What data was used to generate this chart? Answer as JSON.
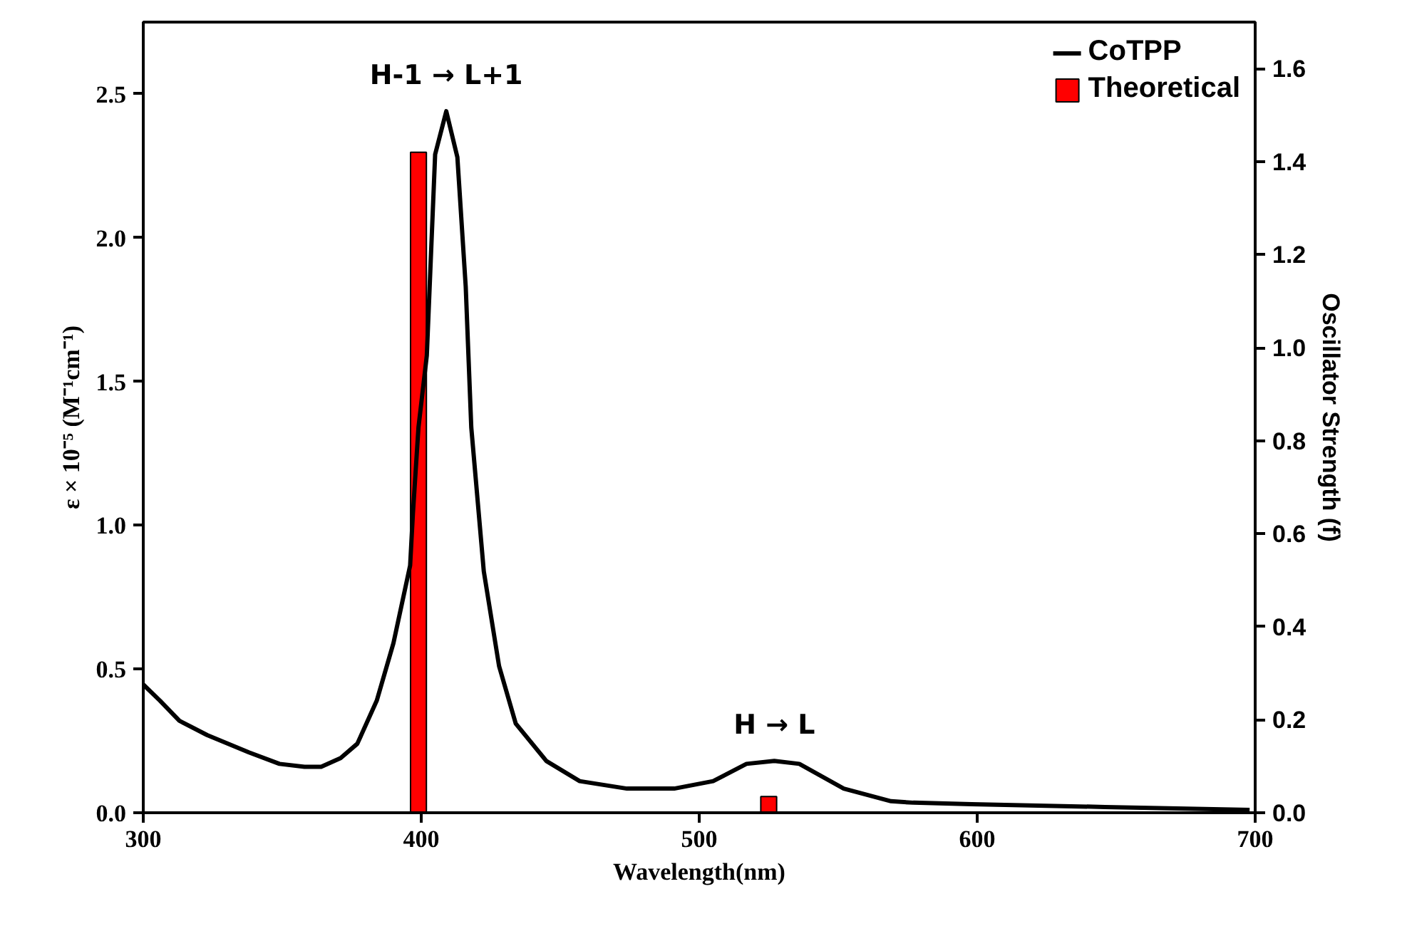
{
  "chart_data": {
    "type": "line",
    "xlabel": "Wavelength(nm)",
    "ylabel": "ε × 10⁻⁵ (M⁻¹cm⁻¹)",
    "y2label": "Oscillator Strength (f)",
    "xlim": [
      300,
      700
    ],
    "xticks": [
      300,
      400,
      500,
      600,
      700
    ],
    "ylim": [
      0,
      2.75
    ],
    "yticks": [
      {
        "value": 0,
        "label": "0.0"
      },
      0.5,
      {
        "value": 1,
        "label": "1.0"
      },
      1.5,
      {
        "value": 2,
        "label": "2.0"
      },
      2.5
    ],
    "y2lim": [
      0,
      1.7
    ],
    "y2ticks": [
      {
        "value": 0,
        "label": "0.0"
      },
      0.2,
      0.4,
      0.6,
      0.8,
      {
        "value": 1,
        "label": "1.0"
      },
      1.2,
      1.4,
      1.6
    ],
    "legend": "top right",
    "grid": false,
    "series": [
      {
        "name": "CoTPP",
        "color": "#000000",
        "x": [
          300,
          306,
          313,
          323,
          338,
          349,
          358,
          364,
          371,
          377,
          384,
          390,
          396,
          397,
          399,
          402,
          405,
          409,
          413,
          416,
          418,
          422.5,
          428,
          434,
          445,
          457,
          474,
          491,
          505,
          517,
          527,
          536,
          552,
          569,
          577,
          598,
          646,
          698
        ],
        "values": [
          0.446,
          0.39,
          0.32,
          0.27,
          0.21,
          0.17,
          0.16,
          0.16,
          0.19,
          0.24,
          0.39,
          0.59,
          0.86,
          1.04,
          1.34,
          1.59,
          2.29,
          2.44,
          2.28,
          1.83,
          1.34,
          0.84,
          0.51,
          0.31,
          0.18,
          0.11,
          0.084,
          0.084,
          0.11,
          0.17,
          0.18,
          0.17,
          0.084,
          0.04,
          0.035,
          0.03,
          0.02,
          0.01
        ]
      },
      {
        "name": "Theoretical",
        "type": "bar",
        "axis": "y2",
        "color": "#ff0000",
        "x": [
          399,
          525
        ],
        "values": [
          1.42,
          0.035
        ]
      }
    ],
    "annotations": [
      {
        "text": "H-1 → L+1",
        "x": 409,
        "y": 2.44
      },
      {
        "text": "H → L",
        "x": 527,
        "y": 0.18
      }
    ]
  }
}
